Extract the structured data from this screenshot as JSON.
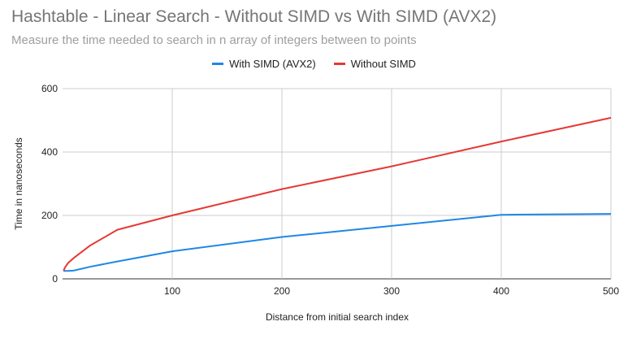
{
  "chart_data": {
    "type": "line",
    "title": "Hashtable - Linear Search - Without SIMD vs With SIMD (AVX2)",
    "subtitle": "Measure the time needed to search in n array of integers between to points",
    "xlabel": "Distance from initial search index",
    "ylabel": "Time in nanoseconds",
    "xlim": [
      0,
      500
    ],
    "ylim": [
      0,
      600
    ],
    "xticks": [
      100,
      200,
      300,
      400,
      500
    ],
    "yticks": [
      0,
      200,
      400,
      600
    ],
    "grid": true,
    "legend_position": "top-center",
    "series": [
      {
        "name": "With SIMD (AVX2)",
        "color": "#1e88e5",
        "x": [
          1,
          2,
          5,
          10,
          25,
          50,
          100,
          200,
          300,
          400,
          500
        ],
        "y": [
          25,
          25,
          25,
          26,
          38,
          55,
          87,
          132,
          167,
          202,
          205
        ]
      },
      {
        "name": "Without SIMD",
        "color": "#e53935",
        "x": [
          1,
          2,
          5,
          10,
          25,
          50,
          100,
          200,
          300,
          400,
          500
        ],
        "y": [
          25,
          35,
          50,
          65,
          105,
          155,
          200,
          283,
          355,
          433,
          508
        ]
      }
    ]
  }
}
